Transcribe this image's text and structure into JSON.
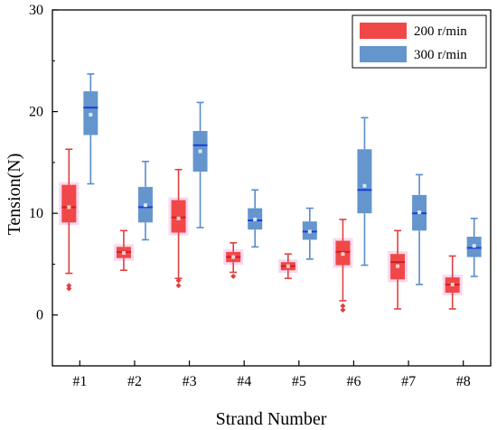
{
  "chart_data": {
    "type": "box",
    "xlabel": "Strand Number",
    "ylabel": "Tension(N)",
    "ylim": [
      -5,
      30
    ],
    "yticks": [
      0,
      10,
      20,
      30
    ],
    "categories": [
      "#1",
      "#2",
      "#3",
      "#4",
      "#5",
      "#6",
      "#7",
      "#8"
    ],
    "legend_position": "top-right",
    "series": [
      {
        "name": "200 r/min",
        "color": "#f04848",
        "boxes": [
          {
            "whisker_low": 4.1,
            "q1": 9.1,
            "median": 10.6,
            "mean": 10.6,
            "q3": 12.8,
            "whisker_high": 16.3,
            "outliers": [
              2.6,
              2.9
            ]
          },
          {
            "whisker_low": 4.4,
            "q1": 5.6,
            "median": 6.2,
            "mean": 6.1,
            "q3": 6.7,
            "whisker_high": 8.3,
            "outliers": []
          },
          {
            "whisker_low": 3.6,
            "q1": 8.1,
            "median": 9.6,
            "mean": 9.5,
            "q3": 11.3,
            "whisker_high": 14.3,
            "outliers": [
              2.9,
              3.4
            ]
          },
          {
            "whisker_low": 4.2,
            "q1": 5.2,
            "median": 5.7,
            "mean": 5.7,
            "q3": 6.2,
            "whisker_high": 7.1,
            "outliers": [
              3.8
            ]
          },
          {
            "whisker_low": 3.6,
            "q1": 4.4,
            "median": 4.8,
            "mean": 4.8,
            "q3": 5.2,
            "whisker_high": 6.0,
            "outliers": []
          },
          {
            "whisker_low": 1.4,
            "q1": 4.9,
            "median": 6.2,
            "mean": 6.0,
            "q3": 7.3,
            "whisker_high": 9.4,
            "outliers": [
              0.5,
              0.9
            ]
          },
          {
            "whisker_low": 0.6,
            "q1": 3.5,
            "median": 5.2,
            "mean": 4.8,
            "q3": 6.0,
            "whisker_high": 8.3,
            "outliers": []
          },
          {
            "whisker_low": 0.6,
            "q1": 2.2,
            "median": 3.0,
            "mean": 3.0,
            "q3": 3.7,
            "whisker_high": 5.8,
            "outliers": []
          }
        ]
      },
      {
        "name": "300 r/min",
        "color": "#6496cd",
        "boxes": [
          {
            "whisker_low": 12.9,
            "q1": 17.7,
            "median": 20.4,
            "mean": 19.7,
            "q3": 22.0,
            "whisker_high": 23.7,
            "outliers": []
          },
          {
            "whisker_low": 7.4,
            "q1": 9.1,
            "median": 10.6,
            "mean": 10.8,
            "q3": 12.6,
            "whisker_high": 15.1,
            "outliers": []
          },
          {
            "whisker_low": 8.6,
            "q1": 14.1,
            "median": 16.7,
            "mean": 16.1,
            "q3": 18.1,
            "whisker_high": 20.9,
            "outliers": []
          },
          {
            "whisker_low": 6.7,
            "q1": 8.4,
            "median": 9.3,
            "mean": 9.4,
            "q3": 10.5,
            "whisker_high": 12.3,
            "outliers": []
          },
          {
            "whisker_low": 5.5,
            "q1": 7.4,
            "median": 8.2,
            "mean": 8.2,
            "q3": 9.2,
            "whisker_high": 10.5,
            "outliers": []
          },
          {
            "whisker_low": 4.9,
            "q1": 10.0,
            "median": 12.3,
            "mean": 12.7,
            "q3": 16.3,
            "whisker_high": 19.4,
            "outliers": []
          },
          {
            "whisker_low": 3.0,
            "q1": 8.3,
            "median": 10.0,
            "mean": 10.1,
            "q3": 11.8,
            "whisker_high": 13.8,
            "outliers": []
          },
          {
            "whisker_low": 3.8,
            "q1": 5.7,
            "median": 6.6,
            "mean": 6.8,
            "q3": 7.7,
            "whisker_high": 9.5,
            "outliers": []
          }
        ]
      }
    ]
  }
}
